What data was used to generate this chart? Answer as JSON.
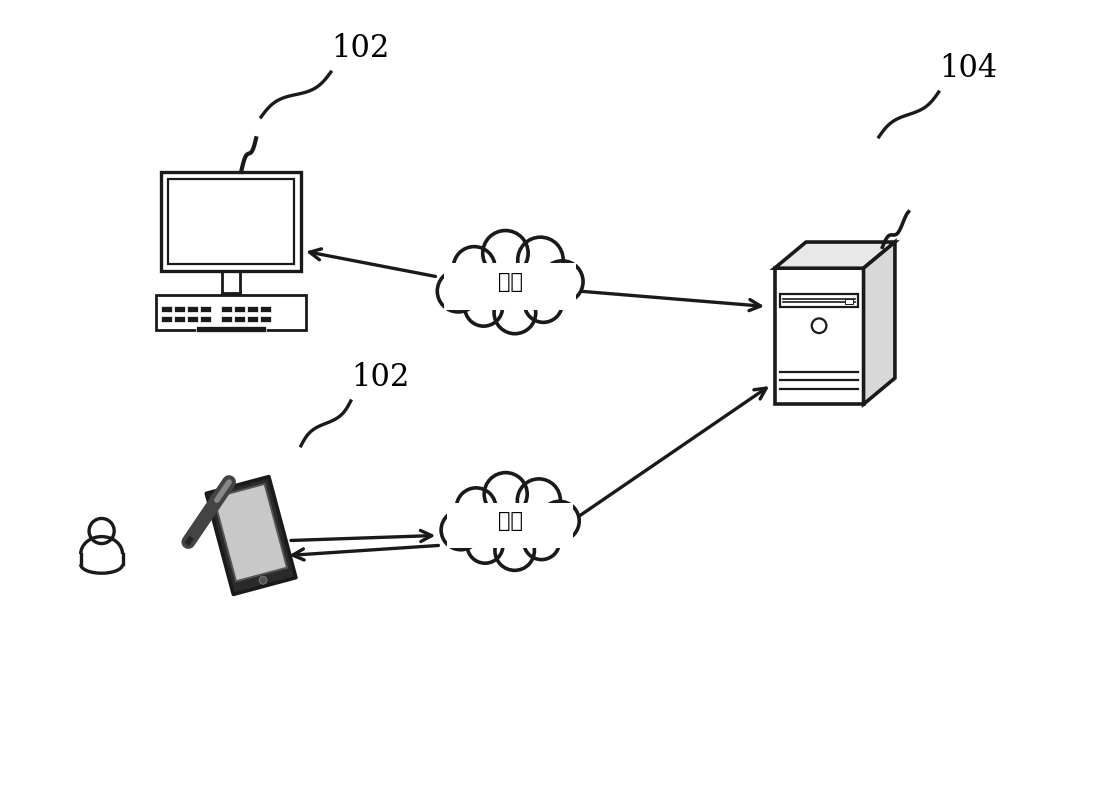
{
  "background_color": "#ffffff",
  "label_102_top": "102",
  "label_102_bottom": "102",
  "label_104": "104",
  "cloud_text": "网络",
  "fig_width": 11.19,
  "fig_height": 7.86,
  "dpi": 100,
  "ec": "#1a1a1a",
  "lw": 2.0
}
